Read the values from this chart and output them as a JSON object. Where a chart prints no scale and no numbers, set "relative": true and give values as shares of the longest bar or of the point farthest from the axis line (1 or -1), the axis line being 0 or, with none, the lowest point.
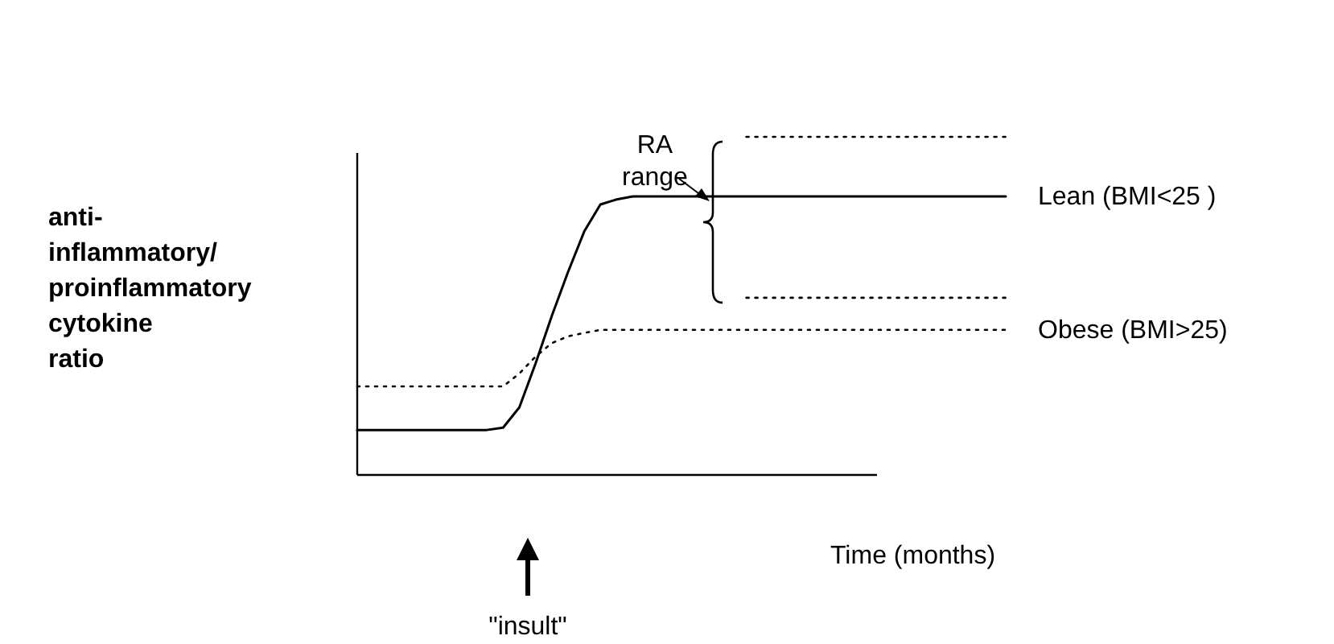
{
  "chart_data": {
    "type": "line",
    "relative": true,
    "ylabel": "anti-\ninflammatory/\nproinflammatory\ncytokine\nratio",
    "xlabel": "Time (months)",
    "legend": false,
    "categories": [
      null,
      null,
      null,
      null,
      null,
      null,
      null,
      null,
      null,
      null,
      null,
      null,
      null,
      null,
      null,
      null,
      null,
      null,
      null,
      null,
      null,
      null,
      null,
      null,
      null,
      null,
      null,
      null,
      null,
      null,
      null,
      null,
      null,
      null,
      null,
      null,
      null,
      null,
      null,
      null,
      null
    ],
    "series": [
      {
        "name": "Lean (BMI<25 )",
        "color": "#000000",
        "line_style": "solid",
        "values": [
          0.133,
          0.133,
          0.133,
          0.133,
          0.133,
          0.133,
          0.133,
          0.133,
          0.133,
          0.14,
          0.2,
          0.33,
          0.47,
          0.6,
          0.72,
          0.8,
          0.815,
          0.824,
          0.824,
          0.824,
          0.824,
          0.824,
          0.824,
          0.824,
          0.824,
          0.824,
          0.824,
          0.824,
          0.824,
          0.824,
          0.824,
          0.824,
          0.824,
          0.824,
          0.824,
          0.824,
          0.824,
          0.824,
          0.824,
          0.824,
          0.824
        ]
      },
      {
        "name": "Obese (BMI>25)",
        "color": "#000000",
        "line_style": "dotted",
        "values": [
          0.262,
          0.262,
          0.262,
          0.262,
          0.262,
          0.262,
          0.262,
          0.262,
          0.262,
          0.262,
          0.3,
          0.35,
          0.39,
          0.41,
          0.42,
          0.429,
          0.429,
          0.429,
          0.429,
          0.429,
          0.429,
          0.429,
          0.429,
          0.429,
          0.429,
          0.429,
          0.429,
          0.429,
          0.429,
          0.429,
          0.429,
          0.429,
          0.429,
          0.429,
          0.429,
          0.429,
          0.429,
          0.429,
          0.429,
          0.429,
          0.429
        ]
      },
      {
        "color": "#000000",
        "line_style": "dotted",
        "values": [
          null,
          null,
          null,
          null,
          null,
          null,
          null,
          null,
          null,
          null,
          null,
          null,
          null,
          null,
          null,
          null,
          null,
          null,
          null,
          null,
          null,
          null,
          null,
          null,
          1,
          1,
          1,
          1,
          1,
          1,
          1,
          1,
          1,
          1,
          1,
          1,
          1,
          1,
          1,
          1,
          1
        ]
      },
      {
        "color": "#000000",
        "line_style": "dotted",
        "values": [
          null,
          null,
          null,
          null,
          null,
          null,
          null,
          null,
          null,
          null,
          null,
          null,
          null,
          null,
          null,
          null,
          null,
          null,
          null,
          null,
          null,
          null,
          null,
          null,
          0.524,
          0.524,
          0.524,
          0.524,
          0.524,
          0.524,
          0.524,
          0.524,
          0.524,
          0.524,
          0.524,
          0.524,
          0.524,
          0.524,
          0.524,
          0.524,
          0.524
        ]
      }
    ],
    "annotations": [
      "RA range",
      "\"insult\""
    ]
  }
}
